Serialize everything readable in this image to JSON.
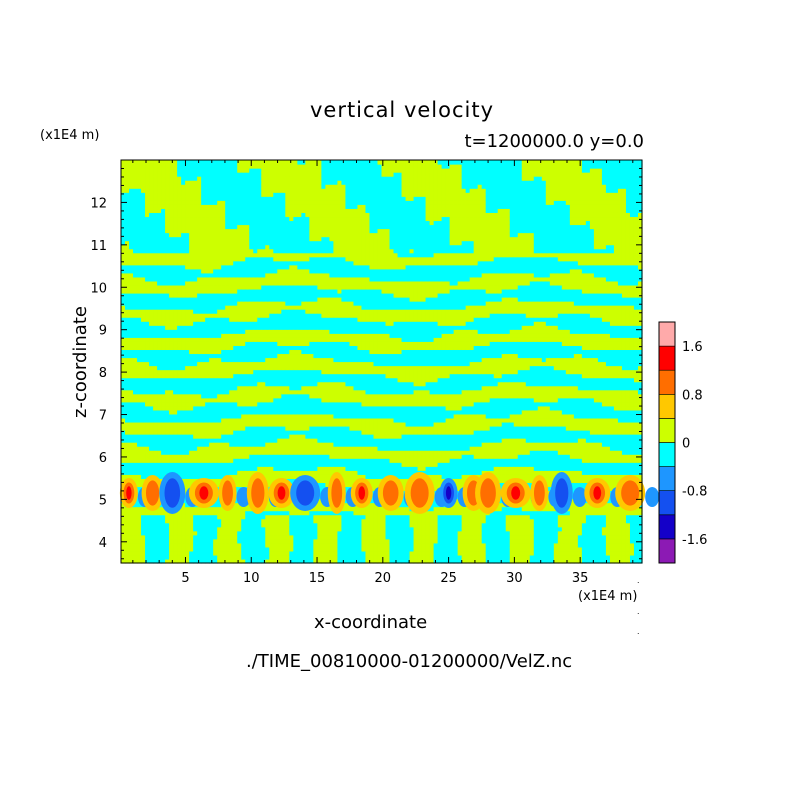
{
  "chart_data": {
    "type": "heatmap",
    "title": "vertical velocity",
    "subtitle": "t=1200000.0 y=0.0",
    "xlabel": "x-coordinate",
    "ylabel": "z-coordinate",
    "x_unit": "(x1E4 m)",
    "y_unit": "(x1E4 m)",
    "xlim": [
      0.1,
      39.7
    ],
    "ylim": [
      3.5,
      13
    ],
    "x_ticks": [
      5,
      10,
      15,
      20,
      25,
      30,
      35
    ],
    "y_ticks": [
      4,
      5,
      6,
      7,
      8,
      9,
      10,
      11,
      12
    ],
    "colorbar": {
      "levels": [
        -2.0,
        -1.6,
        -1.2,
        -0.8,
        -0.4,
        0,
        0.4,
        0.8,
        1.2,
        1.6,
        2.0
      ],
      "tick_labels": [
        "-1.6",
        "-0.8",
        "0",
        "0.8",
        "1.6"
      ],
      "tick_values": [
        -1.6,
        -0.8,
        0,
        0.8,
        1.6
      ],
      "colors": [
        "#8c1ab4",
        "#1400c8",
        "#1450f0",
        "#1e96ff",
        "#00ffff",
        "#cdff00",
        "#ffc800",
        "#ff6e00",
        "#ff0000",
        "#ffaaaa"
      ]
    },
    "grid": false,
    "legend": "right colorbar"
  },
  "source_file": "./TIME_00810000-01200000/VelZ.nc"
}
